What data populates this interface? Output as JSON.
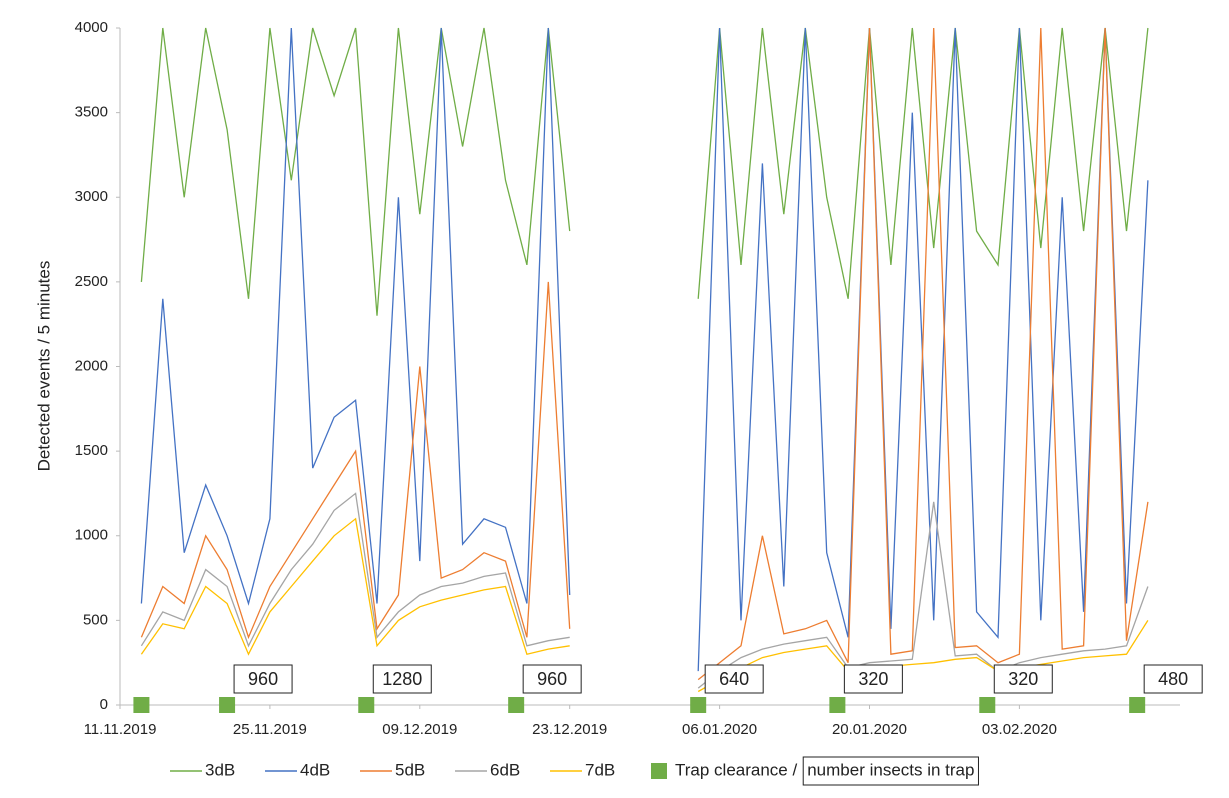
{
  "chart_data": {
    "type": "line",
    "y_label": "Detected events / 5 minutes",
    "x": [
      "13.11.2019",
      "15.11.2019",
      "17.11.2019",
      "19.11.2019",
      "21.11.2019",
      "23.11.2019",
      "25.11.2019",
      "27.11.2019",
      "29.11.2019",
      "01.12.2019",
      "03.12.2019",
      "05.12.2019",
      "07.12.2019",
      "09.12.2019",
      "11.12.2019",
      "13.12.2019",
      "15.12.2019",
      "17.12.2019",
      "19.12.2019",
      "21.12.2019",
      "23.12.2019",
      "25.12.2019",
      "27.12.2019",
      "29.12.2019",
      "31.12.2019",
      "02.01.2020",
      "04.01.2020",
      "06.01.2020",
      "08.01.2020",
      "10.01.2020",
      "12.01.2020",
      "14.01.2020",
      "16.01.2020",
      "18.01.2020",
      "20.01.2020",
      "22.01.2020",
      "24.01.2020",
      "26.01.2020",
      "28.01.2020",
      "30.01.2020",
      "01.02.2020",
      "03.02.2020",
      "05.02.2020",
      "07.02.2020",
      "09.02.2020",
      "11.02.2020",
      "13.02.2020",
      "15.02.2020"
    ],
    "series": [
      {
        "name": "3dB",
        "color": "#70ad47",
        "values": [
          2500,
          4000,
          3000,
          4000,
          3400,
          2400,
          4000,
          3100,
          4000,
          3600,
          4000,
          2300,
          4000,
          2900,
          4000,
          3300,
          4000,
          3100,
          2600,
          4000,
          2800,
          null,
          null,
          null,
          null,
          null,
          2400,
          4000,
          2600,
          4000,
          2900,
          4000,
          3000,
          2400,
          4000,
          2600,
          4000,
          2700,
          4000,
          2800,
          2600,
          4000,
          2700,
          4000,
          2800,
          4000,
          2800,
          4000
        ]
      },
      {
        "name": "4dB",
        "color": "#4472c4",
        "values": [
          600,
          2400,
          900,
          1300,
          1000,
          600,
          1100,
          4000,
          1400,
          1700,
          1800,
          600,
          3000,
          850,
          4000,
          950,
          1100,
          1050,
          600,
          4000,
          650,
          null,
          null,
          null,
          null,
          null,
          200,
          4000,
          500,
          3200,
          700,
          4000,
          900,
          400,
          4000,
          450,
          3500,
          500,
          4000,
          550,
          400,
          4000,
          500,
          3000,
          550,
          4000,
          600,
          3100
        ]
      },
      {
        "name": "5dB",
        "color": "#ed7d31",
        "values": [
          400,
          700,
          600,
          1000,
          800,
          400,
          700,
          900,
          1100,
          1300,
          1500,
          450,
          650,
          2000,
          750,
          800,
          900,
          850,
          400,
          2500,
          450,
          null,
          null,
          null,
          null,
          null,
          150,
          250,
          350,
          1000,
          420,
          450,
          500,
          250,
          4000,
          300,
          320,
          4000,
          340,
          350,
          250,
          300,
          4000,
          330,
          350,
          4000,
          380,
          1200
        ]
      },
      {
        "name": "6dB",
        "color": "#a5a5a5",
        "values": [
          350,
          550,
          500,
          800,
          700,
          350,
          600,
          800,
          950,
          1150,
          1250,
          400,
          550,
          650,
          700,
          720,
          760,
          780,
          350,
          380,
          400,
          null,
          null,
          null,
          null,
          null,
          100,
          200,
          280,
          330,
          360,
          380,
          400,
          220,
          250,
          260,
          270,
          1200,
          290,
          300,
          200,
          250,
          280,
          300,
          320,
          330,
          350,
          700
        ]
      },
      {
        "name": "7dB",
        "color": "#ffc000",
        "values": [
          300,
          480,
          450,
          700,
          600,
          300,
          550,
          700,
          850,
          1000,
          1100,
          350,
          500,
          580,
          620,
          650,
          680,
          700,
          300,
          330,
          350,
          null,
          null,
          null,
          null,
          null,
          80,
          150,
          220,
          280,
          310,
          330,
          350,
          200,
          220,
          230,
          240,
          250,
          270,
          280,
          200,
          220,
          240,
          260,
          280,
          290,
          300,
          500
        ]
      }
    ],
    "traps": {
      "name": "Trap clearance /",
      "count_name": "number insects in trap",
      "color": "#70ad47",
      "x": [
        "13.11.2019",
        "21.11.2019",
        "04.12.2019",
        "18.12.2019",
        "04.01.2020",
        "17.01.2020",
        "31.01.2020",
        "14.02.2020"
      ],
      "values": [
        null,
        960,
        1280,
        960,
        640,
        320,
        320,
        480
      ]
    },
    "xlim": [
      "11.11.2019",
      "18.02.2020"
    ],
    "xticks": [
      "11.11.2019",
      "25.11.2019",
      "09.12.2019",
      "23.12.2019",
      "06.01.2020",
      "20.01.2020",
      "03.02.2020"
    ],
    "ylim": [
      0,
      4000
    ],
    "yticks": [
      0,
      500,
      1000,
      1500,
      2000,
      2500,
      3000,
      3500,
      4000
    ],
    "grid": false
  }
}
